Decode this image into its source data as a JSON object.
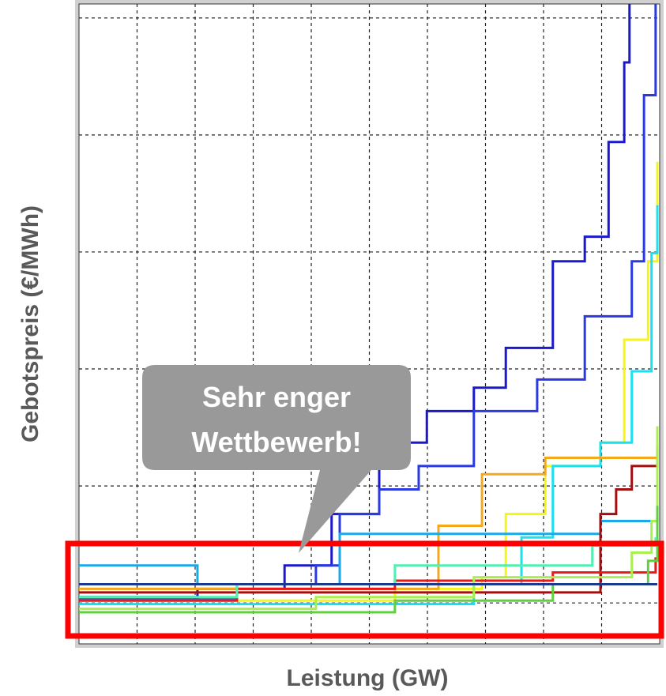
{
  "chart_data": {
    "type": "step",
    "y_label": "Gebotspreis (€/MWh)",
    "x_label": "Leistung (GW)",
    "annotation": [
      "Sehr enger",
      "Wettbewerb!"
    ],
    "xlim": [
      0,
      10
    ],
    "ylim": [
      -0.35,
      5.12
    ],
    "xticks": [
      1,
      2,
      3,
      4,
      5,
      6,
      7,
      8,
      9
    ],
    "yticks": [
      0,
      1,
      2,
      3,
      4,
      5
    ],
    "grid": true,
    "series": [
      {
        "color": "#1a1acc",
        "x": [
          0,
          2.04,
          3.54,
          4.35,
          5.17,
          5.99,
          6.8,
          7.35,
          8.16,
          8.71,
          9.12,
          9.39,
          9.48
        ],
        "values": [
          0.05,
          0.12,
          0.32,
          0.76,
          1.37,
          1.64,
          1.84,
          2.18,
          2.92,
          3.13,
          3.94,
          4.62,
          5.12
        ]
      },
      {
        "color": "#2a3ae0",
        "x": [
          0,
          2.72,
          4.08,
          4.49,
          5.17,
          5.85,
          6.8,
          7.89,
          8.71,
          9.52,
          9.73,
          9.93
        ],
        "values": [
          0.03,
          0.16,
          0.32,
          0.76,
          0.97,
          1.17,
          1.64,
          1.91,
          2.45,
          2.92,
          4.34,
          5.12
        ]
      },
      {
        "color": "#f5f51a",
        "x": [
          0,
          5.44,
          6.94,
          7.35,
          8.03,
          8.98,
          9.39,
          9.8,
          9.96
        ],
        "values": [
          0.02,
          0.12,
          0.22,
          0.76,
          1.17,
          1.37,
          2.25,
          2.92,
          3.77
        ]
      },
      {
        "color": "#1ae0f0",
        "x": [
          0,
          6.8,
          7.62,
          8.16,
          8.98,
          9.52,
          9.86,
          9.96
        ],
        "values": [
          -0.01,
          0.16,
          0.56,
          1.17,
          1.37,
          1.98,
          2.99,
          3.4
        ]
      },
      {
        "color": "#f5a81a",
        "x": [
          0,
          6.19,
          6.94,
          8.03,
          9.96
        ],
        "values": [
          0.12,
          0.66,
          1.1,
          1.24,
          1.24
        ]
      },
      {
        "color": "#1aa8e8",
        "x": [
          0,
          2.04,
          4.49,
          8.98,
          9.96
        ],
        "values": [
          0.32,
          0.16,
          0.59,
          0.7,
          0.73
        ]
      },
      {
        "color": "#a01010",
        "x": [
          0,
          8.98,
          9.25,
          9.52,
          9.96
        ],
        "values": [
          0.09,
          0.76,
          0.97,
          1.17,
          1.34
        ]
      },
      {
        "color": "#e81a1a",
        "x": [
          0,
          2.72,
          5.44,
          8.16,
          9.93
        ],
        "values": [
          0.02,
          0.12,
          0.19,
          0.26,
          0.39
        ]
      },
      {
        "color": "#a8f050",
        "x": [
          0,
          4.08,
          6.8,
          9.52,
          9.86,
          9.96
        ],
        "values": [
          -0.05,
          0.05,
          0.22,
          0.43,
          0.7,
          1.51
        ]
      },
      {
        "color": "#60d040",
        "x": [
          0,
          5.44,
          8.16,
          9.8,
          9.96
        ],
        "values": [
          -0.08,
          0.02,
          0.16,
          0.36,
          0.83
        ]
      },
      {
        "color": "#50f0b0",
        "x": [
          0,
          2.72,
          5.44,
          8.84,
          9.93
        ],
        "values": [
          0.05,
          0.16,
          0.32,
          0.49,
          0.56
        ]
      },
      {
        "color": "#1a3a90",
        "x": [
          0,
          9.96
        ],
        "values": [
          0.16,
          0.16
        ]
      }
    ]
  }
}
